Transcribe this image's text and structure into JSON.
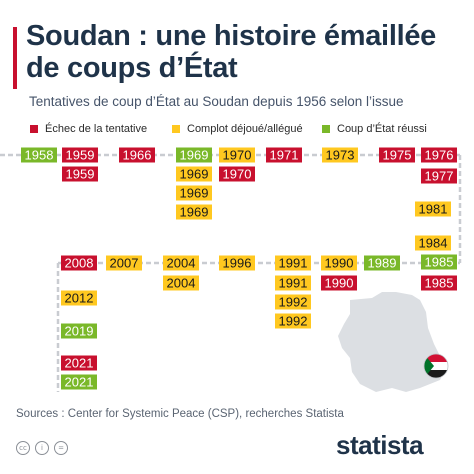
{
  "header": {
    "title": "Soudan : une histoire émaillée de coups d’État",
    "subtitle": "Tentatives de coup d’État au Soudan depuis 1956 selon l’issue"
  },
  "chart_data": {
    "type": "table",
    "title": "Soudan : une histoire émaillée de coups d’État",
    "subtitle": "Tentatives de coup d’État au Soudan depuis 1956 selon l’issue",
    "legend": [
      {
        "key": "echec",
        "label": "Échec de la tentative",
        "color": "#c8102e"
      },
      {
        "key": "complot",
        "label": "Complot déjoué/allégué",
        "color": "#ffc820"
      },
      {
        "key": "reussi",
        "label": "Coup d’État réussi",
        "color": "#7ab829"
      }
    ],
    "events": [
      {
        "year": "1958",
        "outcome": "reussi"
      },
      {
        "year": "1959",
        "outcome": "echec"
      },
      {
        "year": "1959",
        "outcome": "echec"
      },
      {
        "year": "1966",
        "outcome": "echec"
      },
      {
        "year": "1969",
        "outcome": "reussi"
      },
      {
        "year": "1969",
        "outcome": "complot"
      },
      {
        "year": "1969",
        "outcome": "complot"
      },
      {
        "year": "1969",
        "outcome": "complot"
      },
      {
        "year": "1970",
        "outcome": "complot"
      },
      {
        "year": "1970",
        "outcome": "echec"
      },
      {
        "year": "1971",
        "outcome": "echec"
      },
      {
        "year": "1973",
        "outcome": "complot"
      },
      {
        "year": "1975",
        "outcome": "echec"
      },
      {
        "year": "1976",
        "outcome": "echec"
      },
      {
        "year": "1977",
        "outcome": "echec"
      },
      {
        "year": "1981",
        "outcome": "complot"
      },
      {
        "year": "1984",
        "outcome": "complot"
      },
      {
        "year": "1985",
        "outcome": "reussi"
      },
      {
        "year": "1985",
        "outcome": "echec"
      },
      {
        "year": "1989",
        "outcome": "reussi"
      },
      {
        "year": "1990",
        "outcome": "complot"
      },
      {
        "year": "1990",
        "outcome": "echec"
      },
      {
        "year": "1991",
        "outcome": "complot"
      },
      {
        "year": "1991",
        "outcome": "complot"
      },
      {
        "year": "1992",
        "outcome": "complot"
      },
      {
        "year": "1992",
        "outcome": "complot"
      },
      {
        "year": "1996",
        "outcome": "complot"
      },
      {
        "year": "2004",
        "outcome": "complot"
      },
      {
        "year": "2004",
        "outcome": "complot"
      },
      {
        "year": "2007",
        "outcome": "complot"
      },
      {
        "year": "2008",
        "outcome": "echec"
      },
      {
        "year": "2012",
        "outcome": "complot"
      },
      {
        "year": "2019",
        "outcome": "reussi"
      },
      {
        "year": "2021",
        "outcome": "echec"
      },
      {
        "year": "2021",
        "outcome": "reussi"
      }
    ]
  },
  "footer": {
    "sources": "Sources : Center for Systemic Peace (CSP), recherches Statista",
    "license_icons": [
      "creative-commons-icon",
      "attribution-icon",
      "no-derivatives-icon"
    ],
    "license_glyphs": [
      "cc",
      "i",
      "="
    ],
    "logo_text": "statista"
  },
  "colors": {
    "title": "#1f3349",
    "accent": "#c8102e",
    "timeline": "#c9ccd1",
    "map": "#dcdfe3",
    "flag_red": "#d21034",
    "flag_green": "#007229"
  }
}
